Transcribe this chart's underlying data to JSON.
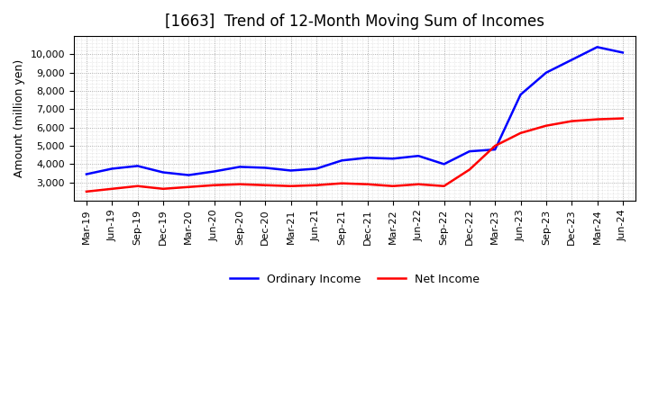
{
  "title": "[1663]  Trend of 12-Month Moving Sum of Incomes",
  "ylabel": "Amount (million yen)",
  "ordinary_income": [
    3450,
    3750,
    3900,
    3550,
    3400,
    3600,
    3850,
    3800,
    3650,
    3750,
    4200,
    4350,
    4300,
    4450,
    4000,
    4700,
    4800,
    7800,
    9000,
    9700,
    10400,
    10100
  ],
  "net_income": [
    2500,
    2650,
    2800,
    2650,
    2750,
    2850,
    2900,
    2850,
    2800,
    2850,
    2950,
    2900,
    2800,
    2900,
    2800,
    3700,
    5000,
    5700,
    6100,
    6350,
    6450,
    6500
  ],
  "x_labels": [
    "Mar-19",
    "Jun-19",
    "Sep-19",
    "Dec-19",
    "Mar-20",
    "Jun-20",
    "Sep-20",
    "Dec-20",
    "Mar-21",
    "Jun-21",
    "Sep-21",
    "Dec-21",
    "Mar-22",
    "Jun-22",
    "Sep-22",
    "Dec-22",
    "Mar-23",
    "Jun-23",
    "Sep-23",
    "Dec-23",
    "Mar-24",
    "Jun-24"
  ],
  "ordinary_color": "#0000ff",
  "net_color": "#ff0000",
  "background_color": "#ffffff",
  "plot_bg_color": "#ffffff",
  "grid_color": "#999999",
  "ylim": [
    2000,
    11000
  ],
  "yticks": [
    3000,
    4000,
    5000,
    6000,
    7000,
    8000,
    9000,
    10000
  ],
  "title_fontsize": 12,
  "label_fontsize": 9,
  "tick_fontsize": 8
}
